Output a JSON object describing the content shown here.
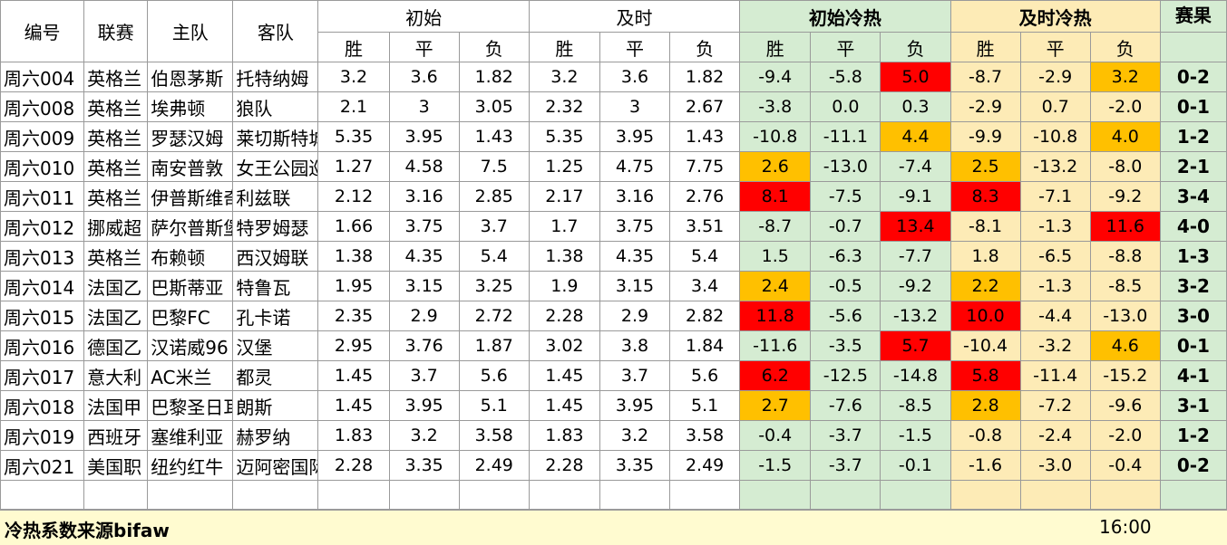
{
  "headers": {
    "id": "编号",
    "league": "联赛",
    "home": "主队",
    "away": "客队",
    "initial": "初始",
    "live": "及时",
    "initial_heat": "初始冷热",
    "live_heat": "及时冷热",
    "result": "赛果",
    "win": "胜",
    "draw": "平",
    "loss": "负"
  },
  "highlight_colors": {
    "initial_heat_bg": "#d5ecd2",
    "live_heat_bg": "#fdebb6",
    "hot_red": "#ff0000",
    "hot_orange": "#ffc000",
    "footer_bg": "#fffbd0"
  },
  "rows": [
    {
      "id": "周六004",
      "league": "英格兰",
      "home": "伯恩茅斯",
      "away": "托特纳姆",
      "iw": "3.2",
      "id_": "3.6",
      "il": "1.82",
      "lw": "3.2",
      "ld": "3.6",
      "ll": "1.82",
      "hiw": "-9.4",
      "hid": "-5.8",
      "hil": "5.0",
      "hlw": "-8.7",
      "hld": "-2.9",
      "hll": "3.2",
      "result": "0-2",
      "hl_iw": "",
      "hl_il": "r",
      "hl_lw": "",
      "hl_ll": "o"
    },
    {
      "id": "周六008",
      "league": "英格兰",
      "home": "埃弗顿",
      "away": "狼队",
      "iw": "2.1",
      "id_": "3",
      "il": "3.05",
      "lw": "2.32",
      "ld": "3",
      "ll": "2.67",
      "hiw": "-3.8",
      "hid": "0.0",
      "hil": "0.3",
      "hlw": "-2.9",
      "hld": "0.7",
      "hll": "-2.0",
      "result": "0-1",
      "hl_iw": "",
      "hl_il": "",
      "hl_lw": "",
      "hl_ll": ""
    },
    {
      "id": "周六009",
      "league": "英格兰",
      "home": "罗瑟汉姆",
      "away": "莱切斯特城",
      "iw": "5.35",
      "id_": "3.95",
      "il": "1.43",
      "lw": "5.35",
      "ld": "3.95",
      "ll": "1.43",
      "hiw": "-10.8",
      "hid": "-11.1",
      "hil": "4.4",
      "hlw": "-9.9",
      "hld": "-10.8",
      "hll": "4.0",
      "result": "1-2",
      "hl_iw": "",
      "hl_il": "o",
      "hl_lw": "",
      "hl_ll": "o"
    },
    {
      "id": "周六010",
      "league": "英格兰",
      "home": "南安普敦",
      "away": "女王公园巡游者",
      "iw": "1.27",
      "id_": "4.58",
      "il": "7.5",
      "lw": "1.25",
      "ld": "4.75",
      "ll": "7.75",
      "hiw": "2.6",
      "hid": "-13.0",
      "hil": "-7.4",
      "hlw": "2.5",
      "hld": "-13.2",
      "hll": "-8.0",
      "result": "2-1",
      "hl_iw": "o",
      "hl_il": "",
      "hl_lw": "o",
      "hl_ll": ""
    },
    {
      "id": "周六011",
      "league": "英格兰",
      "home": "伊普斯维奇",
      "away": "利兹联",
      "iw": "2.12",
      "id_": "3.16",
      "il": "2.85",
      "lw": "2.17",
      "ld": "3.16",
      "ll": "2.76",
      "hiw": "8.1",
      "hid": "-7.5",
      "hil": "-9.1",
      "hlw": "8.3",
      "hld": "-7.1",
      "hll": "-9.2",
      "result": "3-4",
      "hl_iw": "r",
      "hl_il": "",
      "hl_lw": "r",
      "hl_ll": ""
    },
    {
      "id": "周六012",
      "league": "挪威超",
      "home": "萨尔普斯堡",
      "away": "特罗姆瑟",
      "iw": "1.66",
      "id_": "3.75",
      "il": "3.7",
      "lw": "1.7",
      "ld": "3.75",
      "ll": "3.51",
      "hiw": "-8.7",
      "hid": "-0.7",
      "hil": "13.4",
      "hlw": "-8.1",
      "hld": "-1.3",
      "hll": "11.6",
      "result": "4-0",
      "hl_iw": "",
      "hl_il": "r",
      "hl_lw": "",
      "hl_ll": "r"
    },
    {
      "id": "周六013",
      "league": "英格兰",
      "home": "布赖顿",
      "away": "西汉姆联",
      "iw": "1.38",
      "id_": "4.35",
      "il": "5.4",
      "lw": "1.38",
      "ld": "4.35",
      "ll": "5.4",
      "hiw": "1.5",
      "hid": "-6.3",
      "hil": "-7.7",
      "hlw": "1.8",
      "hld": "-6.5",
      "hll": "-8.8",
      "result": "1-3",
      "hl_iw": "",
      "hl_il": "",
      "hl_lw": "",
      "hl_ll": ""
    },
    {
      "id": "周六014",
      "league": "法国乙",
      "home": "巴斯蒂亚",
      "away": "特鲁瓦",
      "iw": "1.95",
      "id_": "3.15",
      "il": "3.25",
      "lw": "1.9",
      "ld": "3.15",
      "ll": "3.4",
      "hiw": "2.4",
      "hid": "-0.5",
      "hil": "-9.2",
      "hlw": "2.2",
      "hld": "-1.3",
      "hll": "-8.5",
      "result": "3-2",
      "hl_iw": "o",
      "hl_il": "",
      "hl_lw": "o",
      "hl_ll": ""
    },
    {
      "id": "周六015",
      "league": "法国乙",
      "home": "巴黎FC",
      "away": "孔卡诺",
      "iw": "2.35",
      "id_": "2.9",
      "il": "2.72",
      "lw": "2.28",
      "ld": "2.9",
      "ll": "2.82",
      "hiw": "11.8",
      "hid": "-5.6",
      "hil": "-13.2",
      "hlw": "10.0",
      "hld": "-4.4",
      "hll": "-13.0",
      "result": "3-0",
      "hl_iw": "r",
      "hl_il": "",
      "hl_lw": "r",
      "hl_ll": ""
    },
    {
      "id": "周六016",
      "league": "德国乙",
      "home": "汉诺威96",
      "away": "汉堡",
      "iw": "2.95",
      "id_": "3.76",
      "il": "1.87",
      "lw": "3.02",
      "ld": "3.8",
      "ll": "1.84",
      "hiw": "-11.6",
      "hid": "-3.5",
      "hil": "5.7",
      "hlw": "-10.4",
      "hld": "-3.2",
      "hll": "4.6",
      "result": "0-1",
      "hl_iw": "",
      "hl_il": "r",
      "hl_lw": "",
      "hl_ll": "o"
    },
    {
      "id": "周六017",
      "league": "意大利",
      "home": "AC米兰",
      "away": "都灵",
      "iw": "1.45",
      "id_": "3.7",
      "il": "5.6",
      "lw": "1.45",
      "ld": "3.7",
      "ll": "5.6",
      "hiw": "6.2",
      "hid": "-12.5",
      "hil": "-14.8",
      "hlw": "5.8",
      "hld": "-11.4",
      "hll": "-15.2",
      "result": "4-1",
      "hl_iw": "r",
      "hl_il": "",
      "hl_lw": "r",
      "hl_ll": ""
    },
    {
      "id": "周六018",
      "league": "法国甲",
      "home": "巴黎圣日耳曼",
      "away": "朗斯",
      "iw": "1.45",
      "id_": "3.95",
      "il": "5.1",
      "lw": "1.45",
      "ld": "3.95",
      "ll": "5.1",
      "hiw": "2.7",
      "hid": "-7.6",
      "hil": "-8.5",
      "hlw": "2.8",
      "hld": "-7.2",
      "hll": "-9.6",
      "result": "3-1",
      "hl_iw": "o",
      "hl_il": "",
      "hl_lw": "o",
      "hl_ll": ""
    },
    {
      "id": "周六019",
      "league": "西班牙",
      "home": "塞维利亚",
      "away": "赫罗纳",
      "iw": "1.83",
      "id_": "3.2",
      "il": "3.58",
      "lw": "1.83",
      "ld": "3.2",
      "ll": "3.58",
      "hiw": "-0.4",
      "hid": "-3.7",
      "hil": "-1.5",
      "hlw": "-0.8",
      "hld": "-2.4",
      "hll": "-2.0",
      "result": "1-2",
      "hl_iw": "",
      "hl_il": "",
      "hl_lw": "",
      "hl_ll": ""
    },
    {
      "id": "周六021",
      "league": "美国职",
      "home": "纽约红牛",
      "away": "迈阿密国际",
      "iw": "2.28",
      "id_": "3.35",
      "il": "2.49",
      "lw": "2.28",
      "ld": "3.35",
      "ll": "2.49",
      "hiw": "-1.5",
      "hid": "-3.7",
      "hil": "-0.1",
      "hlw": "-1.6",
      "hld": "-3.0",
      "hll": "-0.4",
      "result": "0-2",
      "hl_iw": "",
      "hl_il": "",
      "hl_lw": "",
      "hl_ll": ""
    }
  ],
  "footer": {
    "note": "冷热系数来源bifaw",
    "time": "16:00"
  }
}
